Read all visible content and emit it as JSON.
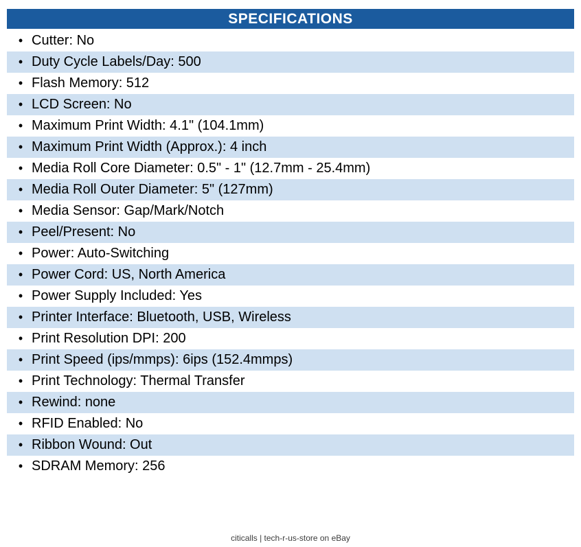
{
  "colors": {
    "header_bg": "#1b5b9e",
    "header_text": "#ffffff",
    "row_alt_bg": "#cfe0f1",
    "row_bg": "#ffffff",
    "text": "#000000",
    "footer_text": "#3c3c3c"
  },
  "header": {
    "title": "SPECIFICATIONS"
  },
  "list": {
    "bullet": "•",
    "items": [
      "Cutter: No",
      "Duty Cycle Labels/Day: 500",
      "Flash Memory: 512",
      "LCD Screen: No",
      "Maximum Print Width: 4.1\" (104.1mm)",
      "Maximum Print Width (Approx.): 4 inch",
      "Media Roll Core Diameter: 0.5\" - 1\" (12.7mm - 25.4mm)",
      "Media Roll Outer Diameter: 5\" (127mm)",
      "Media Sensor: Gap/Mark/Notch",
      "Peel/Present: No",
      "Power: Auto-Switching",
      "Power Cord: US, North America",
      "Power Supply Included: Yes",
      "Printer Interface: Bluetooth, USB, Wireless",
      "Print Resolution DPI: 200",
      "Print Speed (ips/mmps): 6ips (152.4mmps)",
      "Print Technology: Thermal Transfer",
      "Rewind: none",
      "RFID Enabled: No",
      "Ribbon Wound: Out",
      "SDRAM Memory: 256"
    ]
  },
  "footer": {
    "text": "citicalls | tech-r-us-store on eBay"
  }
}
